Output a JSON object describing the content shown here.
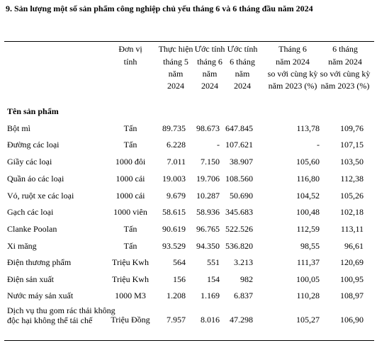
{
  "title": "9. Sản lượng một số sản phẩm công nghiệp chủ yếu tháng 6 và 6 tháng đầu năm 2024",
  "table": {
    "header": [
      [
        "Đơn vị",
        "tính"
      ],
      [
        "Thực hiện",
        "tháng 5",
        "năm",
        "2024"
      ],
      [
        "Ước tính",
        "tháng 6",
        "năm",
        "2024"
      ],
      [
        "Ước tính",
        "6 tháng",
        "năm",
        "2024"
      ],
      [
        "Tháng 6",
        "năm 2024",
        "so với cùng kỳ",
        "năm 2023 (%)"
      ],
      [
        "6 tháng",
        "năm 2024",
        "so với cùng kỳ",
        "năm 2023 (%)"
      ]
    ],
    "section": "Tên sản phẩm",
    "rows": [
      [
        "Bột mì",
        "Tấn",
        "89.735",
        "98.673",
        "647.845",
        "113,78",
        "109,76"
      ],
      [
        "Đường các loại",
        "Tấn",
        "6.228",
        "-",
        "107.621",
        "-",
        "107,15"
      ],
      [
        "Giầy các loại",
        "1000 đôi",
        "7.011",
        "7.150",
        "38.907",
        "105,60",
        "103,50"
      ],
      [
        "Quần áo các loại",
        "1000 cái",
        "19.003",
        "19.706",
        "108.560",
        "116,80",
        "112,38"
      ],
      [
        "Vỏ, ruột xe các loại",
        "1000 cái",
        "9.679",
        "10.287",
        "50.690",
        "104,52",
        "105,26"
      ],
      [
        "Gạch các loại",
        "1000 viên",
        "58.615",
        "58.936",
        "345.683",
        "100,48",
        "102,18"
      ],
      [
        "Clanke Poolan",
        "Tấn",
        "90.619",
        "96.765",
        "522.526",
        "112,59",
        "113,11"
      ],
      [
        "Xi măng",
        "Tấn",
        "93.529",
        "94.350",
        "536.820",
        "98,55",
        "96,61"
      ],
      [
        "Điện thương phẩm",
        "Triệu Kwh",
        "564",
        "551",
        "3.213",
        "111,37",
        "120,69"
      ],
      [
        "Điện sản xuất",
        "Triệu Kwh",
        "156",
        "154",
        "982",
        "100,05",
        "100,95"
      ],
      [
        "Nước máy sản xuất",
        "1000 M3",
        "1.208",
        "1.169",
        "6.837",
        "110,28",
        "108,97"
      ],
      [
        "Dịch vụ thu gom rác thải không độc hại không thể tái chế",
        "Triệu Đồng",
        "7.957",
        "8.016",
        "47.298",
        "105,27",
        "106,90"
      ]
    ]
  }
}
